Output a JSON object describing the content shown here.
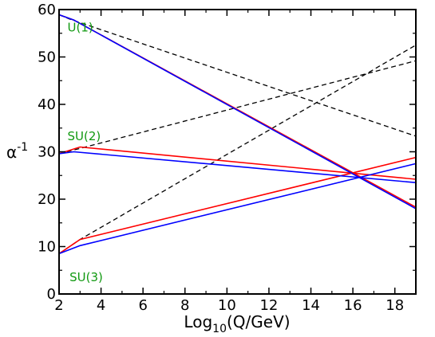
{
  "chart_data": {
    "type": "line",
    "title": "",
    "xlabel": {
      "main": "Log",
      "sub": "10",
      "rest": "(Q/GeV)"
    },
    "ylabel": {
      "main": "α",
      "sup": "-1"
    },
    "xlim": [
      2,
      19
    ],
    "ylim": [
      0,
      60
    ],
    "xticks": [
      2,
      4,
      6,
      8,
      10,
      12,
      14,
      16,
      18
    ],
    "yticks": [
      0,
      10,
      20,
      30,
      40,
      50,
      60
    ],
    "grid": false,
    "legend": "none",
    "colors": {
      "red": "#ff0000",
      "blue": "#0000ff",
      "dashed": "#000000",
      "label": "#119911"
    },
    "annotations": [
      {
        "text": "U(1)",
        "x": 2.4,
        "y": 55.4
      },
      {
        "text": "SU(2)",
        "x": 2.4,
        "y": 32.4
      },
      {
        "text": "SU(3)",
        "x": 2.5,
        "y": 2.7
      }
    ],
    "series": [
      {
        "style": "dashed",
        "color": "#000000",
        "x": [
          2,
          2.5,
          19
        ],
        "y": [
          58.9,
          58.0,
          33.3
        ]
      },
      {
        "style": "dashed",
        "color": "#000000",
        "x": [
          2,
          3,
          19
        ],
        "y": [
          29.6,
          30.7,
          49.2
        ]
      },
      {
        "style": "dashed",
        "color": "#000000",
        "x": [
          2,
          3,
          19
        ],
        "y": [
          8.5,
          11.5,
          52.5
        ]
      },
      {
        "style": "solid",
        "color": "#ff0000",
        "x": [
          2,
          2.7,
          19
        ],
        "y": [
          58.9,
          57.8,
          18.3
        ]
      },
      {
        "style": "solid",
        "color": "#ff0000",
        "x": [
          2,
          3,
          19
        ],
        "y": [
          29.6,
          31.0,
          24.2
        ]
      },
      {
        "style": "solid",
        "color": "#ff0000",
        "x": [
          2,
          3,
          19
        ],
        "y": [
          8.5,
          11.5,
          28.8
        ]
      },
      {
        "style": "solid",
        "color": "#0000ff",
        "x": [
          2,
          2.7,
          19
        ],
        "y": [
          58.9,
          57.8,
          18.0
        ]
      },
      {
        "style": "solid",
        "color": "#0000ff",
        "x": [
          2,
          2.7,
          19
        ],
        "y": [
          29.6,
          30.0,
          23.5
        ]
      },
      {
        "style": "solid",
        "color": "#0000ff",
        "x": [
          2,
          3,
          19
        ],
        "y": [
          8.5,
          10.2,
          27.5
        ]
      }
    ]
  }
}
